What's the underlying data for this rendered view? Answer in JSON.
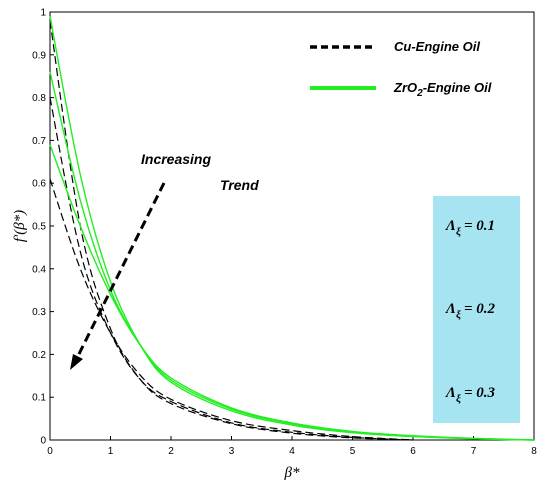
{
  "chart_data": {
    "type": "line",
    "xlabel": "β*",
    "ylabel": "f'(β*)",
    "xlim": [
      0,
      8
    ],
    "ylim": [
      0,
      1
    ],
    "x_ticks": [
      "0",
      "1",
      "2",
      "3",
      "4",
      "5",
      "6",
      "7",
      "8"
    ],
    "y_ticks": [
      "0",
      "0.1",
      "0.2",
      "0.3",
      "0.4",
      "0.5",
      "0.6",
      "0.7",
      "0.8",
      "0.9",
      "1"
    ],
    "grid": false,
    "legend": {
      "placement": "top-right",
      "entries": [
        {
          "label_main": "Cu-Engine Oil",
          "label_sub": "",
          "label_rest": "",
          "color": "#000000",
          "style": "dashed"
        },
        {
          "label_main": "ZrO",
          "label_sub": "2",
          "label_rest": "-Engine Oil",
          "color": "#22ee22",
          "style": "solid"
        }
      ]
    },
    "annotation": {
      "line1": "Increasing",
      "line2": "Trend"
    },
    "param_box": {
      "symbol": "Λ",
      "subscript": "ξ",
      "labels": [
        "= 0.1",
        "= 0.2",
        "= 0.3"
      ],
      "color": "#a7e4f2"
    },
    "series": [
      {
        "group": "Cu-Engine Oil",
        "color": "#000000",
        "style": "dashed",
        "x": [
          0,
          0.5,
          1,
          1.5,
          2,
          3,
          4,
          5,
          6
        ],
        "y": [
          0.61,
          0.4,
          0.25,
          0.15,
          0.095,
          0.045,
          0.022,
          0.008,
          0.0
        ]
      },
      {
        "group": "Cu-Engine Oil",
        "color": "#000000",
        "style": "dashed",
        "x": [
          0,
          0.5,
          1,
          1.5,
          2,
          3,
          4,
          5,
          6
        ],
        "y": [
          0.8,
          0.44,
          0.25,
          0.14,
          0.09,
          0.04,
          0.018,
          0.006,
          0.0
        ]
      },
      {
        "group": "Cu-Engine Oil",
        "color": "#000000",
        "style": "dashed",
        "x": [
          0,
          0.5,
          1,
          1.5,
          2,
          3,
          4,
          5,
          6
        ],
        "y": [
          0.98,
          0.5,
          0.26,
          0.14,
          0.085,
          0.038,
          0.016,
          0.005,
          0.0
        ]
      },
      {
        "group": "ZrO2-Engine Oil",
        "color": "#22ee22",
        "style": "solid",
        "x": [
          0,
          0.5,
          1,
          1.5,
          2,
          3,
          4,
          5,
          6,
          7,
          8
        ],
        "y": [
          0.69,
          0.5,
          0.34,
          0.22,
          0.145,
          0.075,
          0.04,
          0.02,
          0.01,
          0.004,
          0.0
        ]
      },
      {
        "group": "ZrO2-Engine Oil",
        "color": "#22ee22",
        "style": "solid",
        "x": [
          0,
          0.5,
          1,
          1.5,
          2,
          3,
          4,
          5,
          6,
          7,
          8
        ],
        "y": [
          0.86,
          0.56,
          0.35,
          0.22,
          0.14,
          0.072,
          0.038,
          0.019,
          0.009,
          0.003,
          0.0
        ]
      },
      {
        "group": "ZrO2-Engine Oil",
        "color": "#22ee22",
        "style": "solid",
        "x": [
          0,
          0.5,
          1,
          1.5,
          2,
          3,
          4,
          5,
          6,
          7,
          8
        ],
        "y": [
          0.99,
          0.62,
          0.37,
          0.22,
          0.135,
          0.068,
          0.035,
          0.017,
          0.008,
          0.003,
          0.0
        ]
      }
    ]
  }
}
